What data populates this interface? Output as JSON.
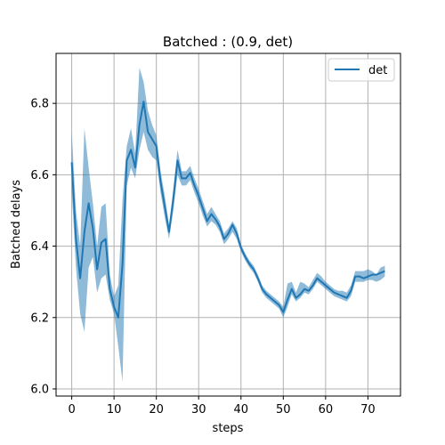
{
  "chart_data": {
    "type": "line",
    "title": "Batched : (0.9, det)",
    "xlabel": "steps",
    "ylabel": "Batched delays",
    "xlim": [
      -3.7,
      77.7
    ],
    "ylim": [
      5.98,
      6.94
    ],
    "xticks": [
      0,
      10,
      20,
      30,
      40,
      50,
      60,
      70
    ],
    "yticks": [
      6.0,
      6.2,
      6.4,
      6.6,
      6.8
    ],
    "ytick_labels": [
      "6.0",
      "6.2",
      "6.4",
      "6.6",
      "6.8"
    ],
    "grid": true,
    "legend_position": "top-right",
    "series": [
      {
        "name": "det",
        "color": "#1f77b4",
        "band_color": "#1f77b4",
        "x": [
          0,
          1,
          2,
          3,
          4,
          5,
          6,
          7,
          8,
          9,
          10,
          11,
          12,
          13,
          14,
          15,
          16,
          17,
          18,
          19,
          20,
          21,
          22,
          23,
          24,
          25,
          26,
          27,
          28,
          29,
          30,
          31,
          32,
          33,
          34,
          35,
          36,
          37,
          38,
          39,
          40,
          41,
          42,
          43,
          44,
          45,
          46,
          47,
          48,
          49,
          50,
          51,
          52,
          53,
          54,
          55,
          56,
          57,
          58,
          59,
          60,
          61,
          62,
          63,
          64,
          65,
          66,
          67,
          68,
          69,
          70,
          71,
          72,
          73,
          74
        ],
        "y": [
          6.635,
          6.42,
          6.31,
          6.44,
          6.52,
          6.45,
          6.335,
          6.41,
          6.42,
          6.28,
          6.23,
          6.2,
          6.35,
          6.64,
          6.67,
          6.62,
          6.74,
          6.805,
          6.72,
          6.7,
          6.68,
          6.58,
          6.51,
          6.44,
          6.53,
          6.64,
          6.59,
          6.59,
          6.605,
          6.57,
          6.54,
          6.505,
          6.47,
          6.49,
          6.475,
          6.455,
          6.42,
          6.435,
          6.46,
          6.435,
          6.395,
          6.37,
          6.35,
          6.335,
          6.31,
          6.28,
          6.265,
          6.255,
          6.245,
          6.235,
          6.215,
          6.25,
          6.28,
          6.255,
          6.265,
          6.28,
          6.275,
          6.29,
          6.31,
          6.3,
          6.29,
          6.28,
          6.27,
          6.265,
          6.26,
          6.255,
          6.275,
          6.315,
          6.315,
          6.31,
          6.315,
          6.32,
          6.32,
          6.325,
          6.33
        ],
        "band_lower": [
          6.555,
          6.34,
          6.21,
          6.16,
          6.34,
          6.37,
          6.27,
          6.31,
          6.32,
          6.25,
          6.21,
          6.12,
          6.02,
          6.57,
          6.62,
          6.59,
          6.67,
          6.72,
          6.67,
          6.65,
          6.64,
          6.55,
          6.48,
          6.42,
          6.5,
          6.6,
          6.57,
          6.57,
          6.585,
          6.55,
          6.52,
          6.485,
          6.455,
          6.47,
          6.46,
          6.44,
          6.405,
          6.42,
          6.44,
          6.42,
          6.385,
          6.36,
          6.34,
          6.325,
          6.3,
          6.27,
          6.255,
          6.245,
          6.235,
          6.225,
          6.2,
          6.23,
          6.265,
          6.245,
          6.255,
          6.27,
          6.265,
          6.28,
          6.3,
          6.29,
          6.28,
          6.27,
          6.26,
          6.255,
          6.25,
          6.245,
          6.26,
          6.3,
          6.3,
          6.3,
          6.305,
          6.305,
          6.3,
          6.305,
          6.315
        ],
        "band_upper": [
          6.72,
          6.5,
          6.4,
          6.73,
          6.62,
          6.52,
          6.4,
          6.51,
          6.52,
          6.32,
          6.26,
          6.29,
          6.53,
          6.68,
          6.73,
          6.66,
          6.9,
          6.86,
          6.78,
          6.74,
          6.71,
          6.61,
          6.54,
          6.46,
          6.56,
          6.67,
          6.61,
          6.61,
          6.625,
          6.59,
          6.56,
          6.525,
          6.49,
          6.51,
          6.49,
          6.47,
          6.435,
          6.45,
          6.47,
          6.45,
          6.405,
          6.38,
          6.36,
          6.345,
          6.32,
          6.29,
          6.275,
          6.265,
          6.255,
          6.245,
          6.23,
          6.295,
          6.3,
          6.27,
          6.3,
          6.295,
          6.285,
          6.305,
          6.325,
          6.315,
          6.3,
          6.29,
          6.28,
          6.275,
          6.275,
          6.27,
          6.29,
          6.33,
          6.33,
          6.33,
          6.335,
          6.33,
          6.32,
          6.34,
          6.345
        ]
      }
    ]
  }
}
